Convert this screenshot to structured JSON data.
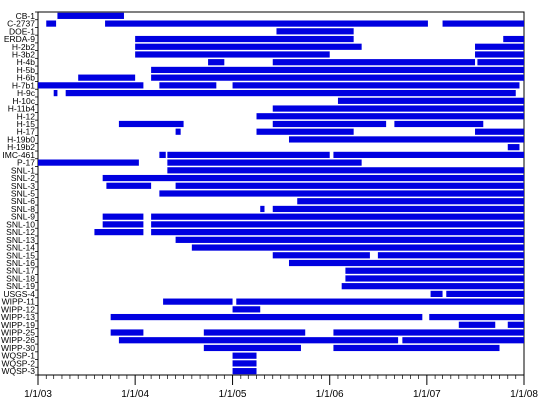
{
  "chart_data": {
    "type": "bar",
    "subtype": "horizontal-timeline",
    "title": "",
    "xlabel": "",
    "ylabel": "",
    "x_axis": {
      "scale": "time",
      "range": [
        "2003-01-01",
        "2008-01-01"
      ],
      "ticks": [
        "1/1/03",
        "1/1/04",
        "1/1/05",
        "1/1/06",
        "1/1/07",
        "1/1/08"
      ],
      "minor_ticks": "monthly"
    },
    "bar_color": "#0000e0",
    "grid": false,
    "legend": "none",
    "categories": [
      "CB-1",
      "C-2737",
      "DOE-1",
      "ERDA-9",
      "H-2b2",
      "H-3b2",
      "H-4b",
      "H-5b",
      "H-6b",
      "H-7b1",
      "H-9c",
      "H-10c",
      "H-11b4",
      "H-12",
      "H-15",
      "H-17",
      "H-19b0",
      "H-19b2",
      "IMC-461",
      "P-17",
      "SNL-1",
      "SNL-2",
      "SNL-3",
      "SNL-5",
      "SNL-6",
      "SNL-8",
      "SNL-9",
      "SNL-10",
      "SNL-12",
      "SNL-13",
      "SNL-14",
      "SNL-15",
      "SNL-16",
      "SNL-17",
      "SNL-18",
      "SNL-19",
      "USGS-4",
      "WIPP-11",
      "WIPP-12",
      "WIPP-13",
      "WIPP-19",
      "WIPP-25",
      "WIPP-26",
      "WIPP-30",
      "WQSP-1",
      "WQSP-2",
      "WQSP-3"
    ],
    "intervals": [
      [
        [
          "2003-03-15",
          "2003-11-20"
        ]
      ],
      [
        [
          "2003-02-01",
          "2003-03-10"
        ],
        [
          "2003-09-10",
          "2007-01-05"
        ],
        [
          "2007-03-01",
          "2008-01-01"
        ]
      ],
      [
        [
          "2005-06-15",
          "2006-04-01"
        ]
      ],
      [
        [
          "2004-01-01",
          "2006-04-01"
        ],
        [
          "2007-10-15",
          "2008-01-01"
        ]
      ],
      [
        [
          "2004-01-01",
          "2006-05-01"
        ],
        [
          "2007-07-01",
          "2008-01-01"
        ]
      ],
      [
        [
          "2004-01-01",
          "2006-01-01"
        ],
        [
          "2007-07-01",
          "2008-01-01"
        ]
      ],
      [
        [
          "2004-10-01",
          "2004-12-01"
        ],
        [
          "2005-06-01",
          "2007-07-01"
        ],
        [
          "2007-07-10",
          "2008-01-01"
        ]
      ],
      [
        [
          "2004-03-01",
          "2008-01-01"
        ]
      ],
      [
        [
          "2003-06-01",
          "2004-01-01"
        ],
        [
          "2004-03-01",
          "2008-01-01"
        ]
      ],
      [
        [
          "2003-01-01",
          "2004-02-01"
        ],
        [
          "2004-04-01",
          "2004-11-01"
        ],
        [
          "2005-01-01",
          "2007-12-15"
        ]
      ],
      [
        [
          "2003-03-01",
          "2003-03-15"
        ],
        [
          "2003-04-15",
          "2007-12-01"
        ]
      ],
      [
        [
          "2006-02-01",
          "2008-01-01"
        ]
      ],
      [
        [
          "2005-06-01",
          "2008-01-01"
        ]
      ],
      [
        [
          "2005-04-01",
          "2008-01-01"
        ]
      ],
      [
        [
          "2003-11-01",
          "2004-07-01"
        ],
        [
          "2005-06-01",
          "2006-08-01"
        ],
        [
          "2006-09-01",
          "2007-08-01"
        ]
      ],
      [
        [
          "2004-06-01",
          "2004-06-20"
        ],
        [
          "2005-04-01",
          "2006-04-01"
        ],
        [
          "2007-07-01",
          "2008-01-01"
        ]
      ],
      [
        [
          "2005-08-01",
          "2008-01-01"
        ]
      ],
      [
        [
          "2007-11-01",
          "2007-12-15"
        ]
      ],
      [
        [
          "2004-04-01",
          "2004-04-25"
        ],
        [
          "2004-05-01",
          "2006-01-01"
        ],
        [
          "2006-01-15",
          "2008-01-01"
        ]
      ],
      [
        [
          "2003-01-01",
          "2004-01-15"
        ],
        [
          "2004-05-01",
          "2006-05-01"
        ]
      ],
      [
        [
          "2004-05-01",
          "2008-01-01"
        ]
      ],
      [
        [
          "2003-09-01",
          "2008-01-01"
        ]
      ],
      [
        [
          "2003-09-15",
          "2004-03-01"
        ],
        [
          "2004-06-01",
          "2008-01-01"
        ]
      ],
      [
        [
          "2004-04-01",
          "2008-01-01"
        ]
      ],
      [
        [
          "2005-09-01",
          "2008-01-01"
        ]
      ],
      [
        [
          "2005-04-15",
          "2005-05-01"
        ],
        [
          "2005-06-01",
          "2008-01-01"
        ]
      ],
      [
        [
          "2003-09-01",
          "2004-02-01"
        ],
        [
          "2004-03-01",
          "2008-01-01"
        ]
      ],
      [
        [
          "2003-09-01",
          "2004-02-01"
        ],
        [
          "2004-03-01",
          "2008-01-01"
        ]
      ],
      [
        [
          "2003-08-01",
          "2004-02-01"
        ],
        [
          "2004-03-01",
          "2008-01-01"
        ]
      ],
      [
        [
          "2004-06-01",
          "2008-01-01"
        ]
      ],
      [
        [
          "2004-08-01",
          "2008-01-01"
        ]
      ],
      [
        [
          "2005-06-01",
          "2006-06-01"
        ],
        [
          "2006-07-01",
          "2008-01-01"
        ]
      ],
      [
        [
          "2005-08-01",
          "2008-01-01"
        ]
      ],
      [
        [
          "2006-03-01",
          "2008-01-01"
        ]
      ],
      [
        [
          "2006-03-01",
          "2008-01-01"
        ]
      ],
      [
        [
          "2006-02-15",
          "2008-01-01"
        ]
      ],
      [
        [
          "2007-01-15",
          "2007-03-01"
        ],
        [
          "2007-03-15",
          "2008-01-01"
        ]
      ],
      [
        [
          "2004-04-15",
          "2005-01-01"
        ],
        [
          "2005-01-15",
          "2008-01-01"
        ]
      ],
      [
        [
          "2005-01-01",
          "2005-04-15"
        ]
      ],
      [
        [
          "2003-10-01",
          "2006-12-15"
        ],
        [
          "2007-01-10",
          "2008-01-01"
        ]
      ],
      [
        [
          "2007-05-01",
          "2007-09-15"
        ],
        [
          "2007-11-01",
          "2008-01-01"
        ]
      ],
      [
        [
          "2003-10-01",
          "2004-02-01"
        ],
        [
          "2004-09-15",
          "2005-10-01"
        ],
        [
          "2006-01-15",
          "2008-01-01"
        ]
      ],
      [
        [
          "2003-11-01",
          "2006-09-15"
        ],
        [
          "2006-10-01",
          "2008-01-01"
        ]
      ],
      [
        [
          "2004-09-15",
          "2005-09-15"
        ],
        [
          "2006-01-15",
          "2007-10-01"
        ]
      ],
      [
        [
          "2005-01-01",
          "2005-04-01"
        ]
      ],
      [
        [
          "2005-01-01",
          "2005-04-01"
        ]
      ],
      [
        [
          "2005-01-01",
          "2005-04-01"
        ]
      ]
    ]
  }
}
